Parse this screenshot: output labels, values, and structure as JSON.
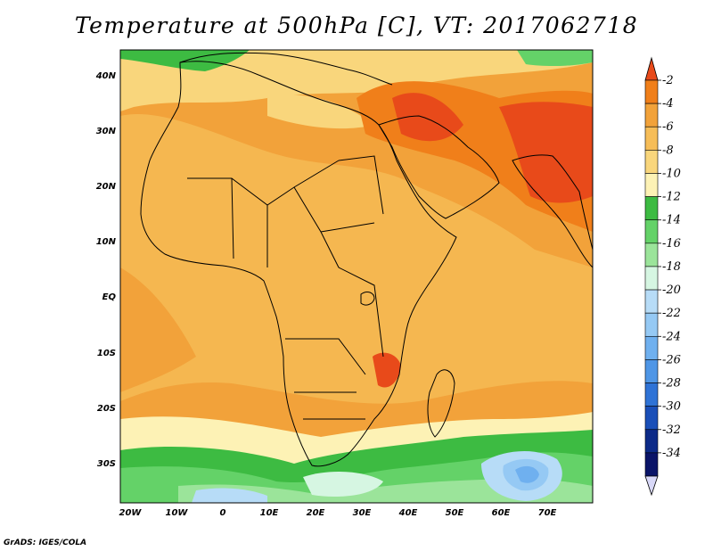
{
  "title": "Temperature at 500hPa [C], VT: 2017062718",
  "credit": "GrADS: IGES/COLA",
  "map": {
    "lat_labels": [
      "40N",
      "30N",
      "20N",
      "10N",
      "EQ",
      "10S",
      "20S",
      "30S"
    ],
    "lon_labels": [
      "20W",
      "10W",
      "0",
      "10E",
      "20E",
      "30E",
      "40E",
      "50E",
      "60E",
      "70E"
    ]
  },
  "colorbar": {
    "labels": [
      "-2",
      "-4",
      "-6",
      "-8",
      "-10",
      "-12",
      "-14",
      "-16",
      "-18",
      "-20",
      "-22",
      "-24",
      "-26",
      "-28",
      "-30",
      "-32",
      "-34"
    ],
    "colors": [
      "#e84a1a",
      "#f07f1a",
      "#f2a23a",
      "#f6bd58",
      "#f9d67c",
      "#fdf2b5",
      "#3dbb42",
      "#64d268",
      "#9be49a",
      "#d6f6e2",
      "#b7dcf7",
      "#95c9f4",
      "#6fb0ef",
      "#4f96e6",
      "#2f73d6",
      "#1a4fb8",
      "#0c2a88",
      "#0a1468"
    ],
    "end_colors": {
      "top": "#e84a1a",
      "bottom": "#d8d8f8"
    }
  }
}
